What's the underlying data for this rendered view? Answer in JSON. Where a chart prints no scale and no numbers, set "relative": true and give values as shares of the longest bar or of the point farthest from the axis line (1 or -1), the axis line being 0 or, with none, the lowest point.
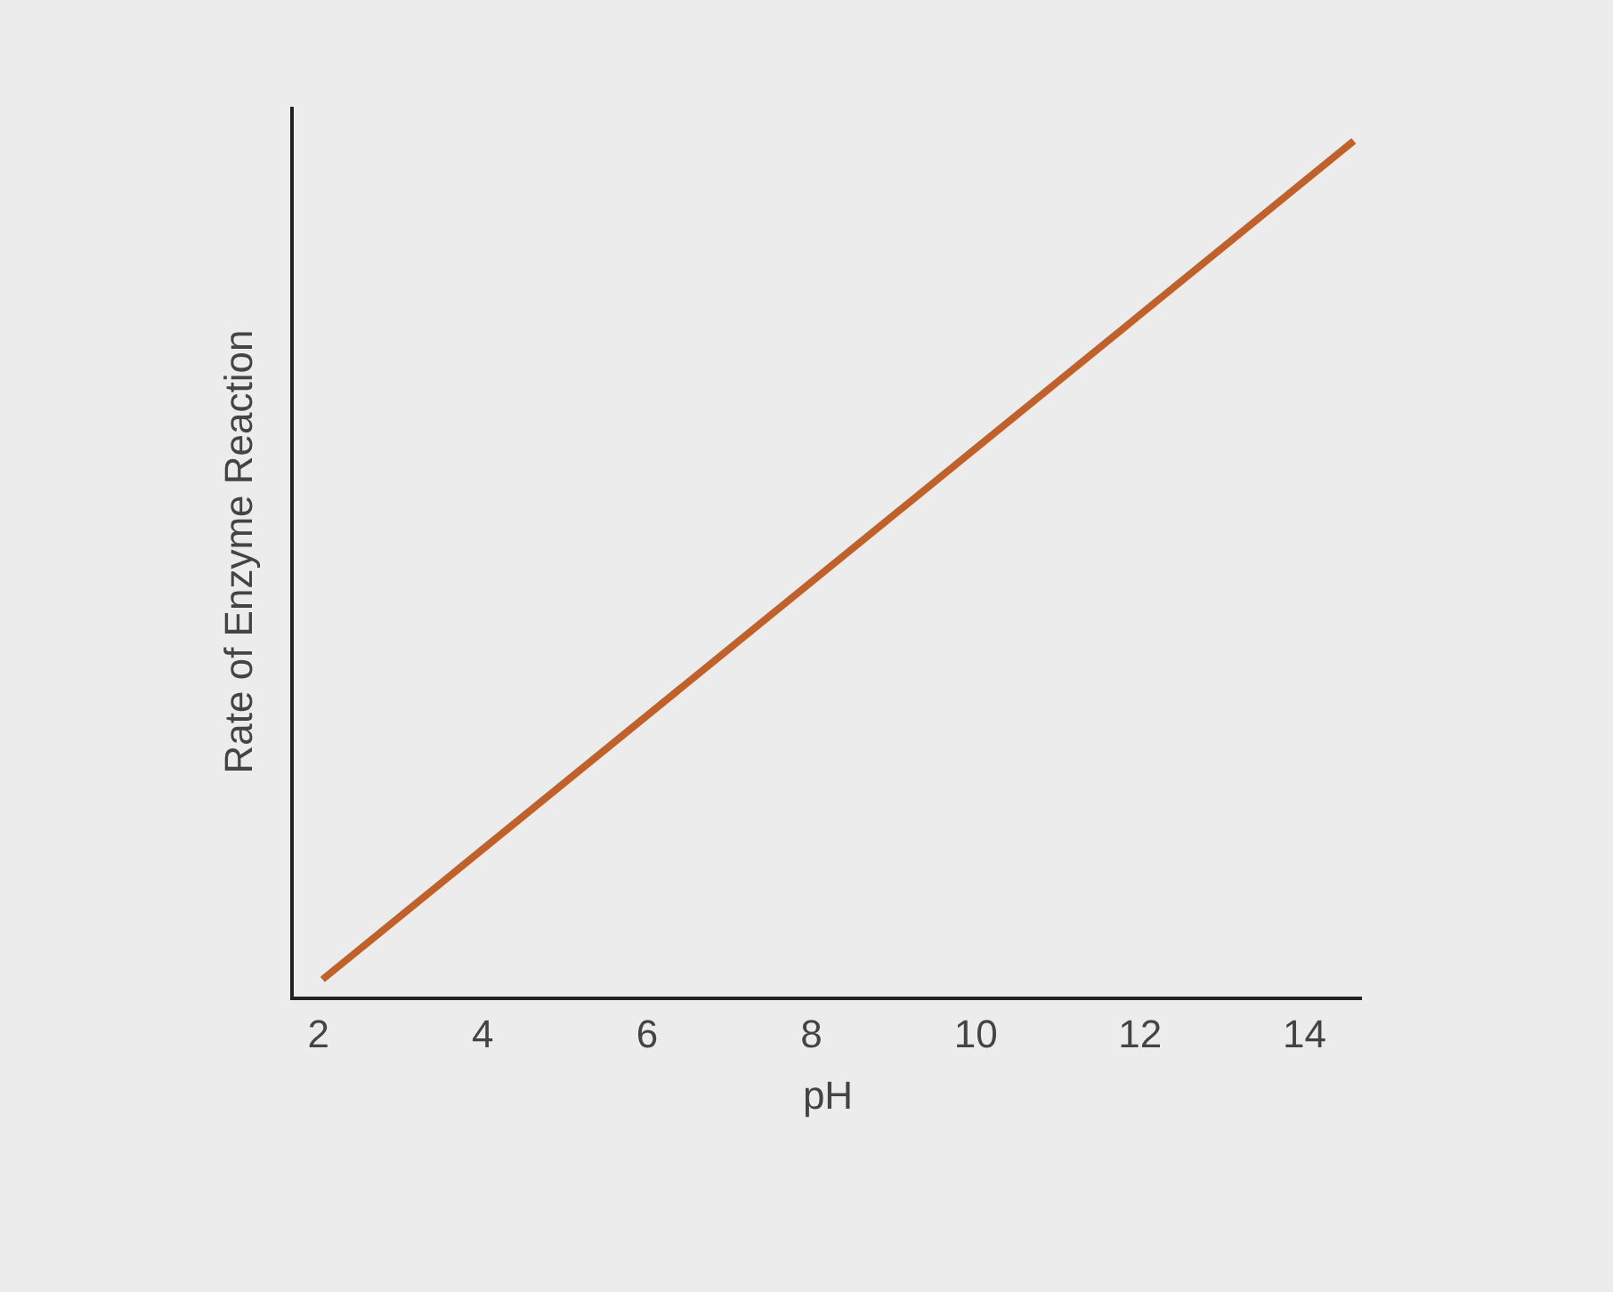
{
  "chart_data": {
    "type": "line",
    "xlabel": "pH",
    "ylabel": "Rate of Enzyme Reaction",
    "relative": true,
    "xlim": [
      1.7,
      14.7
    ],
    "xticks": [
      2,
      4,
      6,
      8,
      10,
      12,
      14
    ],
    "grid": false,
    "marker": "none",
    "line_style": "solid",
    "series": [
      {
        "color": "#c0602a",
        "x": [
          2.05,
          14.6
        ],
        "values": [
          0.02,
          1
        ]
      }
    ]
  }
}
